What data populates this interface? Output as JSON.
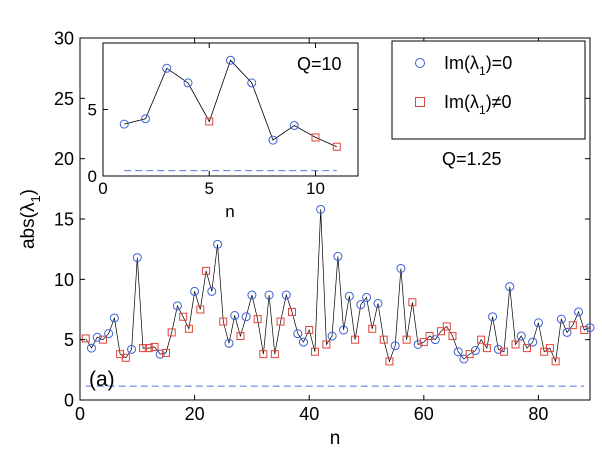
{
  "chart_data": [
    {
      "type": "scatter",
      "panel_label": "(a)",
      "annotation": "Q=1.25",
      "xlabel": "n",
      "ylabel": "abs(λ",
      "ylabel_sub": "1",
      "ylabel_close": ")",
      "xlim": [
        0,
        89
      ],
      "ylim": [
        0,
        30
      ],
      "xticks": [
        0,
        20,
        40,
        60,
        80
      ],
      "yticks": [
        0,
        5,
        10,
        15,
        20,
        25,
        30
      ],
      "legend": {
        "placement": "top-right",
        "entries": [
          {
            "text": "Im(λ",
            "sub": "1",
            "rest": ")=0",
            "marker": "circle",
            "color": "#3a5fd8"
          },
          {
            "text": "Im(λ",
            "sub": "1",
            "rest": ")≠0",
            "marker": "square",
            "color": "#e0443a"
          }
        ]
      },
      "reference_line": {
        "y": 1.15,
        "style": "dashed",
        "color": "#5577dd"
      },
      "x": [
        1,
        2,
        3,
        4,
        5,
        6,
        7,
        8,
        9,
        10,
        11,
        12,
        13,
        14,
        15,
        16,
        17,
        18,
        19,
        20,
        21,
        22,
        23,
        24,
        25,
        26,
        27,
        28,
        29,
        30,
        31,
        32,
        33,
        34,
        35,
        36,
        37,
        38,
        39,
        40,
        41,
        42,
        43,
        44,
        45,
        46,
        47,
        48,
        49,
        50,
        51,
        52,
        53,
        54,
        55,
        56,
        57,
        58,
        59,
        60,
        61,
        62,
        63,
        64,
        65,
        66,
        67,
        68,
        69,
        70,
        71,
        72,
        73,
        74,
        75,
        76,
        77,
        78,
        79,
        80,
        81,
        82,
        83,
        84,
        85,
        86,
        87,
        88,
        89
      ],
      "values": [
        5.1,
        4.3,
        5.2,
        5.0,
        5.5,
        6.8,
        3.8,
        3.5,
        4.2,
        11.8,
        4.3,
        4.3,
        4.4,
        3.8,
        3.9,
        5.6,
        7.8,
        6.9,
        5.9,
        9.0,
        7.5,
        10.7,
        9.0,
        12.9,
        6.5,
        4.7,
        7.0,
        5.3,
        6.9,
        8.7,
        6.7,
        3.8,
        8.7,
        3.8,
        6.5,
        8.7,
        7.3,
        5.5,
        4.8,
        5.8,
        4.0,
        15.8,
        4.6,
        5.3,
        11.9,
        5.8,
        8.6,
        5.0,
        7.9,
        8.5,
        5.9,
        8.0,
        5.0,
        3.2,
        4.5,
        10.9,
        5.0,
        8.1,
        4.6,
        4.8,
        5.3,
        5.0,
        5.7,
        6.1,
        5.3,
        4.0,
        3.4,
        3.8,
        4.1,
        5.0,
        4.3,
        6.9,
        4.2,
        4.0,
        9.4,
        4.6,
        5.3,
        4.3,
        4.8,
        6.4,
        4.0,
        4.3,
        3.2,
        6.7,
        5.6,
        6.2,
        7.3,
        5.8,
        6.0
      ],
      "imag_zero": [
        false,
        true,
        true,
        false,
        true,
        true,
        false,
        false,
        true,
        true,
        false,
        false,
        false,
        true,
        false,
        false,
        true,
        false,
        false,
        true,
        false,
        false,
        true,
        true,
        false,
        true,
        true,
        false,
        true,
        true,
        false,
        false,
        true,
        false,
        false,
        true,
        false,
        true,
        true,
        false,
        false,
        true,
        false,
        true,
        true,
        true,
        true,
        false,
        true,
        true,
        false,
        true,
        false,
        false,
        true,
        true,
        false,
        false,
        true,
        false,
        false,
        true,
        false,
        false,
        false,
        true,
        true,
        false,
        true,
        false,
        false,
        true,
        true,
        false,
        true,
        false,
        true,
        false,
        true,
        true,
        false,
        false,
        false,
        true,
        true,
        false,
        true,
        false,
        true
      ]
    },
    {
      "type": "line",
      "annotation": "Q=10",
      "xlabel": "n",
      "xlim": [
        0,
        12
      ],
      "ylim": [
        0,
        10
      ],
      "xticks": [
        0,
        5,
        10
      ],
      "yticks": [
        0,
        5
      ],
      "reference_line": {
        "y": 0.4,
        "style": "dashed",
        "color": "#5577dd"
      },
      "x": [
        1,
        2,
        3,
        4,
        5,
        6,
        7,
        8,
        9,
        10,
        11
      ],
      "values": [
        3.9,
        4.3,
        8.1,
        7.0,
        4.1,
        8.7,
        7.0,
        2.7,
        3.8,
        2.9,
        2.2
      ],
      "imag_zero": [
        true,
        true,
        true,
        true,
        false,
        true,
        true,
        true,
        true,
        false,
        false
      ]
    }
  ]
}
